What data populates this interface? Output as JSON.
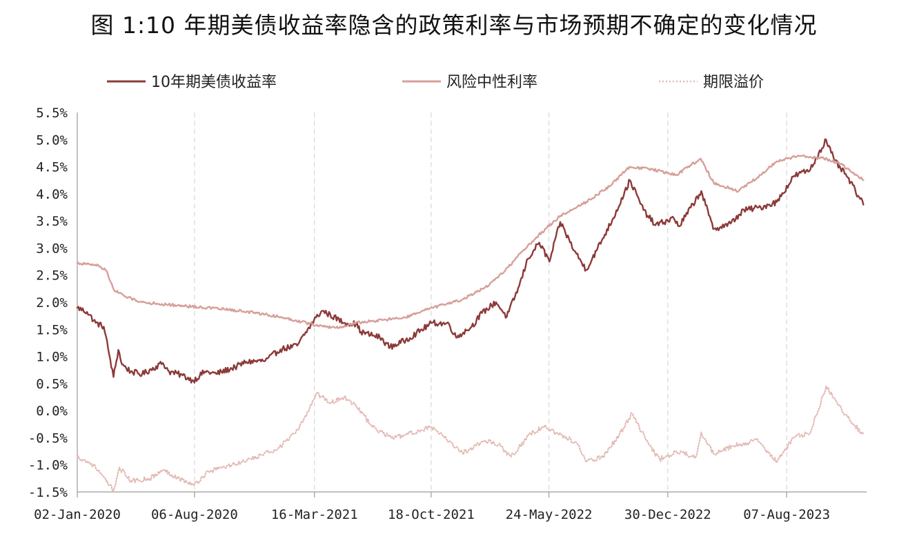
{
  "title": "图 1:10 年期美债收益率隐含的政策利率与市场预期不确定的变化情况",
  "chart_data": {
    "type": "line",
    "y_unit": "%",
    "ylim": [
      -1.5,
      5.5
    ],
    "y_ticks": [
      "5.5%",
      "5.0%",
      "4.5%",
      "4.0%",
      "3.5%",
      "3.0%",
      "2.5%",
      "2.0%",
      "1.5%",
      "1.0%",
      "0.5%",
      "0.0%",
      "-0.5%",
      "-1.0%",
      "-1.5%"
    ],
    "x_ticks": [
      "02-Jan-2020",
      "06-Aug-2020",
      "16-Mar-2021",
      "18-Oct-2021",
      "24-May-2022",
      "30-Dec-2022",
      "07-Aug-2023"
    ],
    "x_range": [
      "2020-01-02",
      "2024-01-02"
    ],
    "grid": "vertical dashed",
    "legend_position": "top",
    "series": [
      {
        "name": "10年期美债收益率",
        "color": "#8b3a38",
        "style": "solid",
        "points": [
          [
            "2020-01-02",
            1.9
          ],
          [
            "2020-01-20",
            1.82
          ],
          [
            "2020-02-05",
            1.62
          ],
          [
            "2020-02-20",
            1.55
          ],
          [
            "2020-02-28",
            1.15
          ],
          [
            "2020-03-09",
            0.62
          ],
          [
            "2020-03-18",
            1.12
          ],
          [
            "2020-03-25",
            0.85
          ],
          [
            "2020-04-10",
            0.72
          ],
          [
            "2020-05-01",
            0.67
          ],
          [
            "2020-06-08",
            0.88
          ],
          [
            "2020-06-20",
            0.72
          ],
          [
            "2020-07-15",
            0.65
          ],
          [
            "2020-08-04",
            0.55
          ],
          [
            "2020-08-25",
            0.72
          ],
          [
            "2020-09-15",
            0.68
          ],
          [
            "2020-10-20",
            0.8
          ],
          [
            "2020-11-10",
            0.9
          ],
          [
            "2020-12-15",
            0.92
          ],
          [
            "2021-01-12",
            1.13
          ],
          [
            "2021-02-12",
            1.2
          ],
          [
            "2021-03-19",
            1.72
          ],
          [
            "2021-03-31",
            1.84
          ],
          [
            "2021-05-10",
            1.62
          ],
          [
            "2021-06-01",
            1.6
          ],
          [
            "2021-06-10",
            1.45
          ],
          [
            "2021-07-15",
            1.35
          ],
          [
            "2021-08-03",
            1.17
          ],
          [
            "2021-09-01",
            1.3
          ],
          [
            "2021-10-20",
            1.62
          ],
          [
            "2021-11-20",
            1.6
          ],
          [
            "2021-12-03",
            1.35
          ],
          [
            "2022-01-01",
            1.55
          ],
          [
            "2022-01-20",
            1.8
          ],
          [
            "2022-02-15",
            2.0
          ],
          [
            "2022-03-07",
            1.73
          ],
          [
            "2022-03-30",
            2.3
          ],
          [
            "2022-04-15",
            2.8
          ],
          [
            "2022-05-06",
            3.1
          ],
          [
            "2022-05-25",
            2.75
          ],
          [
            "2022-06-14",
            3.48
          ],
          [
            "2022-07-10",
            2.95
          ],
          [
            "2022-08-01",
            2.6
          ],
          [
            "2022-08-20",
            2.95
          ],
          [
            "2022-09-20",
            3.55
          ],
          [
            "2022-10-21",
            4.25
          ],
          [
            "2022-11-15",
            3.7
          ],
          [
            "2022-12-07",
            3.42
          ],
          [
            "2023-01-10",
            3.55
          ],
          [
            "2023-01-20",
            3.4
          ],
          [
            "2023-03-02",
            4.05
          ],
          [
            "2023-03-24",
            3.35
          ],
          [
            "2023-04-25",
            3.45
          ],
          [
            "2023-05-20",
            3.7
          ],
          [
            "2023-06-20",
            3.75
          ],
          [
            "2023-07-20",
            3.85
          ],
          [
            "2023-08-21",
            4.33
          ],
          [
            "2023-09-20",
            4.45
          ],
          [
            "2023-10-19",
            5.0
          ],
          [
            "2023-11-03",
            4.62
          ],
          [
            "2023-11-28",
            4.3
          ],
          [
            "2023-12-27",
            3.8
          ]
        ]
      },
      {
        "name": "风险中性利率",
        "color": "#d69f99",
        "style": "solid",
        "points": [
          [
            "2020-01-02",
            2.72
          ],
          [
            "2020-02-10",
            2.68
          ],
          [
            "2020-02-25",
            2.58
          ],
          [
            "2020-03-10",
            2.22
          ],
          [
            "2020-04-01",
            2.1
          ],
          [
            "2020-05-01",
            2.0
          ],
          [
            "2020-06-01",
            1.97
          ],
          [
            "2020-08-01",
            1.92
          ],
          [
            "2020-10-01",
            1.87
          ],
          [
            "2020-12-01",
            1.8
          ],
          [
            "2021-01-15",
            1.72
          ],
          [
            "2021-03-01",
            1.62
          ],
          [
            "2021-04-01",
            1.55
          ],
          [
            "2021-05-01",
            1.53
          ],
          [
            "2021-06-01",
            1.62
          ],
          [
            "2021-07-01",
            1.65
          ],
          [
            "2021-09-01",
            1.72
          ],
          [
            "2021-10-15",
            1.88
          ],
          [
            "2021-12-15",
            2.05
          ],
          [
            "2022-02-01",
            2.3
          ],
          [
            "2022-03-10",
            2.65
          ],
          [
            "2022-04-01",
            2.9
          ],
          [
            "2022-05-01",
            3.2
          ],
          [
            "2022-06-15",
            3.6
          ],
          [
            "2022-08-01",
            3.85
          ],
          [
            "2022-09-15",
            4.15
          ],
          [
            "2022-10-20",
            4.5
          ],
          [
            "2022-12-01",
            4.45
          ],
          [
            "2023-01-15",
            4.35
          ],
          [
            "2023-03-01",
            4.65
          ],
          [
            "2023-03-25",
            4.2
          ],
          [
            "2023-05-10",
            4.05
          ],
          [
            "2023-06-20",
            4.35
          ],
          [
            "2023-07-20",
            4.6
          ],
          [
            "2023-09-01",
            4.7
          ],
          [
            "2023-10-15",
            4.65
          ],
          [
            "2023-11-15",
            4.55
          ],
          [
            "2023-12-27",
            4.25
          ]
        ]
      },
      {
        "name": "期限溢价",
        "color": "#e3b9b4",
        "style": "dotted",
        "points": [
          [
            "2020-01-02",
            -0.85
          ],
          [
            "2020-02-01",
            -1.0
          ],
          [
            "2020-03-09",
            -1.48
          ],
          [
            "2020-03-20",
            -1.05
          ],
          [
            "2020-04-10",
            -1.3
          ],
          [
            "2020-05-15",
            -1.25
          ],
          [
            "2020-06-10",
            -1.1
          ],
          [
            "2020-07-15",
            -1.28
          ],
          [
            "2020-08-05",
            -1.38
          ],
          [
            "2020-09-01",
            -1.12
          ],
          [
            "2020-10-15",
            -1.0
          ],
          [
            "2020-11-20",
            -0.9
          ],
          [
            "2021-01-10",
            -0.68
          ],
          [
            "2021-02-15",
            -0.35
          ],
          [
            "2021-03-20",
            0.32
          ],
          [
            "2021-04-15",
            0.15
          ],
          [
            "2021-05-10",
            0.25
          ],
          [
            "2021-06-01",
            0.1
          ],
          [
            "2021-07-01",
            -0.3
          ],
          [
            "2021-08-05",
            -0.5
          ],
          [
            "2021-09-01",
            -0.45
          ],
          [
            "2021-10-15",
            -0.3
          ],
          [
            "2021-11-15",
            -0.52
          ],
          [
            "2021-12-15",
            -0.78
          ],
          [
            "2022-01-25",
            -0.55
          ],
          [
            "2022-02-20",
            -0.62
          ],
          [
            "2022-03-15",
            -0.85
          ],
          [
            "2022-04-20",
            -0.42
          ],
          [
            "2022-05-15",
            -0.3
          ],
          [
            "2022-06-15",
            -0.45
          ],
          [
            "2022-07-15",
            -0.6
          ],
          [
            "2022-08-01",
            -0.95
          ],
          [
            "2022-09-01",
            -0.85
          ],
          [
            "2022-10-01",
            -0.45
          ],
          [
            "2022-10-25",
            -0.05
          ],
          [
            "2022-11-20",
            -0.55
          ],
          [
            "2022-12-15",
            -0.9
          ],
          [
            "2023-01-15",
            -0.75
          ],
          [
            "2023-02-20",
            -0.85
          ],
          [
            "2023-03-02",
            -0.4
          ],
          [
            "2023-03-25",
            -0.8
          ],
          [
            "2023-05-01",
            -0.65
          ],
          [
            "2023-06-15",
            -0.55
          ],
          [
            "2023-07-20",
            -0.95
          ],
          [
            "2023-08-20",
            -0.5
          ],
          [
            "2023-09-20",
            -0.4
          ],
          [
            "2023-10-19",
            0.45
          ],
          [
            "2023-11-10",
            0.1
          ],
          [
            "2023-12-27",
            -0.45
          ]
        ]
      }
    ]
  }
}
